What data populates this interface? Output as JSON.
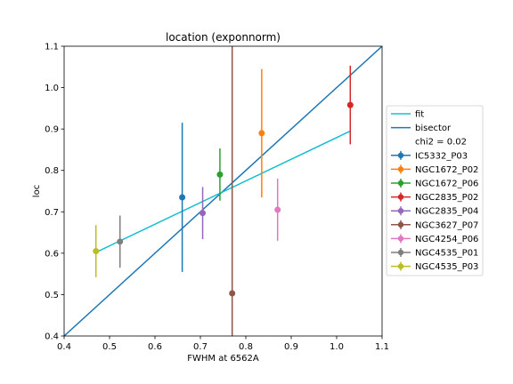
{
  "chart_data": {
    "type": "scatter",
    "title": "location (exponnorm)",
    "xlabel": "FWHM at 6562A",
    "ylabel": "loc",
    "xlim": [
      0.4,
      1.1
    ],
    "ylim": [
      0.4,
      1.1
    ],
    "xticks": [
      "0.4",
      "0.5",
      "0.6",
      "0.7",
      "0.8",
      "0.9",
      "1.0",
      "1.1"
    ],
    "yticks": [
      "0.4",
      "0.5",
      "0.6",
      "0.7",
      "0.8",
      "0.9",
      "1.0",
      "1.1"
    ],
    "grid": false,
    "legend_position": "right",
    "fit": {
      "name": "fit",
      "color": "#17becf",
      "x": [
        0.47,
        1.03
      ],
      "y": [
        0.602,
        0.895
      ]
    },
    "bisector": {
      "name": "bisector",
      "color": "#1f77b4",
      "x": [
        0.4,
        1.1
      ],
      "y": [
        0.4,
        1.1
      ]
    },
    "chi2_label": "chi2 = 0.02",
    "series": [
      {
        "name": "IC5332_P03",
        "color": "#1f77b4",
        "x": 0.66,
        "y": 0.735,
        "err_low": 0.18,
        "err_high": 0.18
      },
      {
        "name": "NGC1672_P02",
        "color": "#ff7f0e",
        "x": 0.835,
        "y": 0.89,
        "err_low": 0.155,
        "err_high": 0.155
      },
      {
        "name": "NGC1672_P06",
        "color": "#2ca02c",
        "x": 0.743,
        "y": 0.79,
        "err_low": 0.063,
        "err_high": 0.063
      },
      {
        "name": "NGC2835_P02",
        "color": "#d62728",
        "x": 1.03,
        "y": 0.958,
        "err_low": 0.095,
        "err_high": 0.095
      },
      {
        "name": "NGC2835_P04",
        "color": "#9467bd",
        "x": 0.705,
        "y": 0.697,
        "err_low": 0.063,
        "err_high": 0.063
      },
      {
        "name": "NGC3627_P07",
        "color": "#8c564b",
        "x": 0.77,
        "y": 0.503,
        "err_low": 0.2,
        "err_high": 0.7
      },
      {
        "name": "NGC4254_P06",
        "color": "#e377c2",
        "x": 0.87,
        "y": 0.705,
        "err_low": 0.075,
        "err_high": 0.075
      },
      {
        "name": "NGC4535_P01",
        "color": "#7f7f7f",
        "x": 0.523,
        "y": 0.628,
        "err_low": 0.063,
        "err_high": 0.063
      },
      {
        "name": "NGC4535_P03",
        "color": "#bcbd22",
        "x": 0.47,
        "y": 0.605,
        "err_low": 0.063,
        "err_high": 0.063
      }
    ]
  }
}
